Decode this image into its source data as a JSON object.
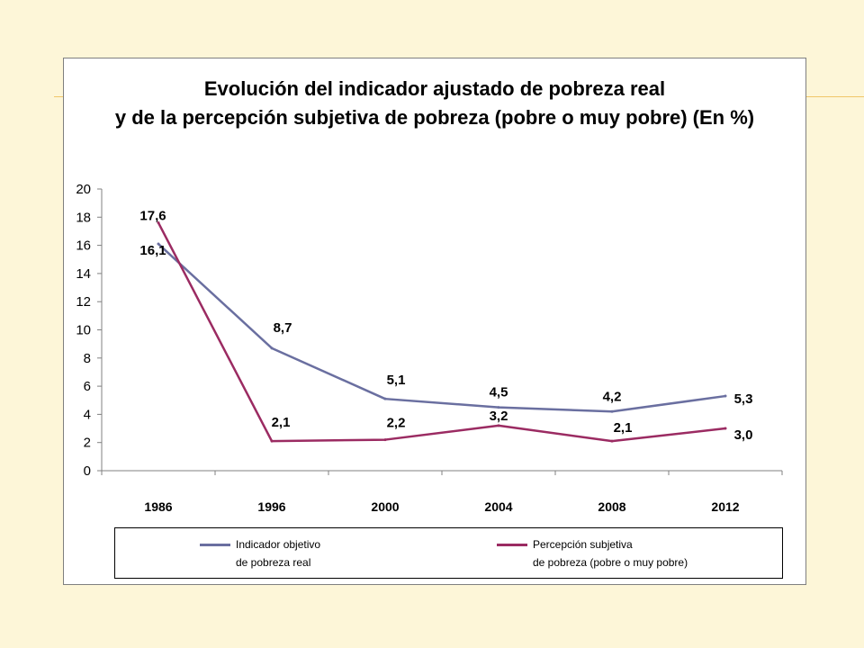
{
  "colors": {
    "background": "#fdf6d8",
    "series1": "#6a6fa0",
    "series2": "#9b2b62"
  },
  "chart_data": {
    "type": "line",
    "title": [
      "Evolución del indicador ajustado de pobreza real",
      "y de la percepción subjetiva de pobreza (pobre o muy pobre) (En %)"
    ],
    "categories": [
      "1986",
      "1996",
      "2000",
      "2004",
      "2008",
      "2012"
    ],
    "ylim": [
      0,
      20
    ],
    "yticks": [
      "0",
      "2",
      "4",
      "6",
      "8",
      "10",
      "12",
      "14",
      "16",
      "18",
      "20"
    ],
    "grid": false,
    "legend_position": "bottom",
    "series": [
      {
        "name": "Indicador objetivo de pobreza real",
        "legend_lines": [
          "Indicador objetivo",
          "de pobreza real"
        ],
        "color": "#6a6fa0",
        "values": [
          16.1,
          8.7,
          5.1,
          4.5,
          4.2,
          5.3
        ],
        "labels": [
          "16,1",
          "8,7",
          "5,1",
          "4,5",
          "4,2",
          "5,3"
        ]
      },
      {
        "name": "Percepción subjetiva de pobreza (pobre o muy pobre)",
        "legend_lines": [
          "Percepción subjetiva",
          "de pobreza (pobre o muy pobre)"
        ],
        "color": "#9b2b62",
        "values": [
          17.6,
          2.1,
          2.2,
          3.2,
          2.1,
          3.0
        ],
        "labels": [
          "17,6",
          "2,1",
          "2,2",
          "3,2",
          "2,1",
          "3,0"
        ]
      }
    ]
  }
}
